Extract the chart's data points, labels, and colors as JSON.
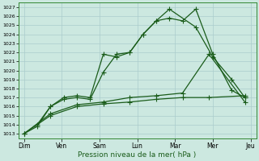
{
  "xlabel": "Pression niveau de la mer( hPa )",
  "x_labels": [
    "Dim",
    "Ven",
    "Sam",
    "Lun",
    "Mar",
    "Mer",
    "Jeu"
  ],
  "ylim": [
    1012.5,
    1027.5
  ],
  "yticks": [
    1013,
    1014,
    1015,
    1016,
    1017,
    1018,
    1019,
    1020,
    1021,
    1022,
    1023,
    1024,
    1025,
    1026,
    1027
  ],
  "bg_color": "#cce8e0",
  "grid_color": "#aacccc",
  "line_color": "#1a5c1a",
  "lines": [
    {
      "x": [
        0,
        0.35,
        0.7,
        1.05,
        1.4,
        1.75,
        2.1,
        2.45,
        2.8,
        3.15,
        3.5,
        3.85,
        4.2,
        4.55,
        5.0,
        5.5,
        5.85
      ],
      "y": [
        1013.0,
        1013.8,
        1016.0,
        1016.8,
        1017.0,
        1016.8,
        1019.8,
        1021.8,
        1022.0,
        1024.0,
        1025.5,
        1025.8,
        1025.5,
        1026.8,
        1021.8,
        1017.8,
        1017.0
      ]
    },
    {
      "x": [
        0.35,
        0.7,
        1.05,
        1.4,
        1.75,
        2.1,
        2.45,
        2.8,
        3.15,
        3.5,
        3.85,
        4.55,
        5.0,
        5.5,
        5.85
      ],
      "y": [
        1014.0,
        1016.0,
        1017.0,
        1017.2,
        1017.0,
        1021.8,
        1021.5,
        1022.0,
        1024.0,
        1025.5,
        1026.8,
        1024.8,
        1021.5,
        1019.0,
        1017.0
      ]
    },
    {
      "x": [
        0,
        0.7,
        1.4,
        2.1,
        2.8,
        3.5,
        4.2,
        4.9,
        5.85
      ],
      "y": [
        1013.0,
        1015.0,
        1016.0,
        1016.3,
        1016.5,
        1016.8,
        1017.0,
        1017.0,
        1017.2
      ]
    },
    {
      "x": [
        0,
        0.7,
        1.4,
        2.1,
        2.8,
        3.5,
        4.2,
        4.9,
        5.85
      ],
      "y": [
        1013.0,
        1015.2,
        1016.2,
        1016.5,
        1017.0,
        1017.2,
        1017.5,
        1021.8,
        1016.5
      ]
    }
  ],
  "marker": "+",
  "markersize": 4,
  "linewidth": 0.9
}
